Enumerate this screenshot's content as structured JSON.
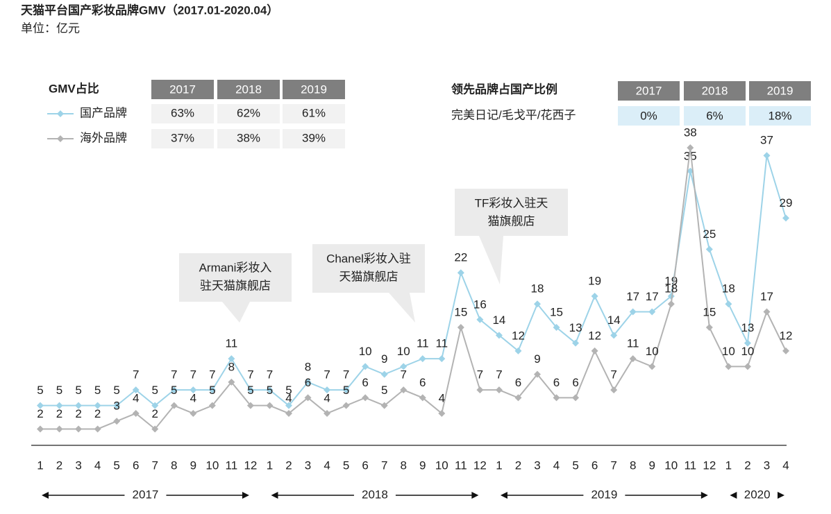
{
  "chart_data": {
    "type": "line",
    "title": "天猫平台国产彩妆品牌GMV（2017.01-2020.04）",
    "subtitle": "单位：亿元",
    "categories": [
      "1",
      "2",
      "3",
      "4",
      "5",
      "6",
      "7",
      "8",
      "9",
      "10",
      "11",
      "12",
      "1",
      "2",
      "3",
      "4",
      "5",
      "6",
      "7",
      "8",
      "9",
      "10",
      "11",
      "12",
      "1",
      "2",
      "3",
      "4",
      "5",
      "6",
      "7",
      "8",
      "9",
      "10",
      "11",
      "12",
      "1",
      "2",
      "3",
      "4"
    ],
    "years": [
      "2017",
      "2018",
      "2019",
      "2020"
    ],
    "series": [
      {
        "name": "国产品牌",
        "color": "#9dd3e8",
        "values": [
          5,
          5,
          5,
          5,
          5,
          7,
          5,
          7,
          7,
          7,
          11,
          7,
          7,
          5,
          8,
          7,
          7,
          10,
          9,
          10,
          11,
          11,
          22,
          16,
          14,
          12,
          18,
          15,
          13,
          19,
          14,
          17,
          17,
          19,
          35,
          25,
          18,
          13,
          37,
          29
        ]
      },
      {
        "name": "海外品牌",
        "color": "#b3b3b3",
        "values": [
          2,
          2,
          2,
          2,
          3,
          4,
          2,
          5,
          4,
          5,
          8,
          5,
          5,
          4,
          6,
          4,
          5,
          6,
          5,
          7,
          6,
          4,
          15,
          7,
          7,
          6,
          9,
          6,
          6,
          12,
          7,
          11,
          10,
          18,
          38,
          15,
          10,
          10,
          17,
          12
        ]
      }
    ],
    "annotations": [
      {
        "lines": [
          "Armani彩妆入",
          "驻天猫旗舰店"
        ]
      },
      {
        "lines": [
          "Chanel彩妆入驻",
          "天猫旗舰店"
        ]
      },
      {
        "lines": [
          "TF彩妆入驻天",
          "猫旗舰店"
        ]
      }
    ]
  },
  "share_table": {
    "header": "GMV占比",
    "years": [
      "2017",
      "2018",
      "2019"
    ],
    "rows": [
      [
        "63%",
        "62%",
        "61%"
      ],
      [
        "37%",
        "38%",
        "39%"
      ]
    ]
  },
  "brand_table": {
    "header": "领先品牌占国产比例",
    "years": [
      "2017",
      "2018",
      "2019"
    ],
    "row_label": "完美日记/毛戈平/花西子",
    "row": [
      "0%",
      "6%",
      "18%"
    ]
  }
}
